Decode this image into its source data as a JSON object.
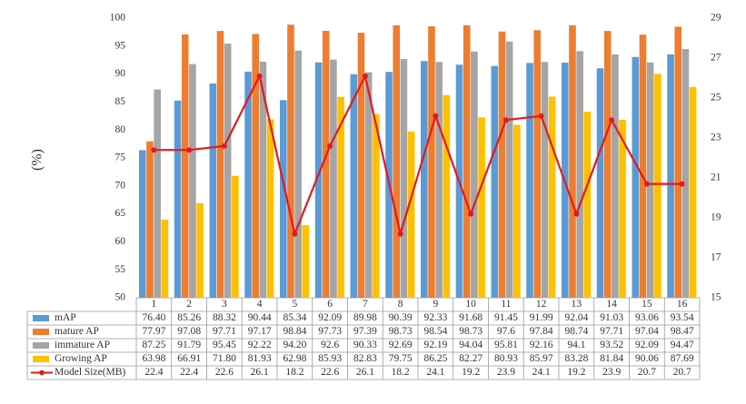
{
  "chart_data": {
    "type": "bar",
    "y_label": "(%)",
    "categories": [
      "1",
      "2",
      "3",
      "4",
      "5",
      "6",
      "7",
      "8",
      "9",
      "10",
      "11",
      "12",
      "13",
      "14",
      "15",
      "16"
    ],
    "ylim": [
      50,
      100
    ],
    "yticks": [
      50,
      55,
      60,
      65,
      70,
      75,
      80,
      85,
      90,
      95,
      100
    ],
    "y2lim": [
      15,
      29
    ],
    "y2ticks": [
      15,
      17,
      19,
      21,
      23,
      25,
      27,
      29
    ],
    "grid": false,
    "series": [
      {
        "name": "mAP",
        "color": "#5b9bd5",
        "type": "bar",
        "values": [
          76.4,
          85.26,
          88.32,
          90.44,
          85.34,
          92.09,
          89.98,
          90.39,
          92.33,
          91.68,
          91.45,
          91.99,
          92.04,
          91.03,
          93.06,
          93.54
        ],
        "value_labels": [
          "76.40",
          "85.26",
          "88.32",
          "90.44",
          "85.34",
          "92.09",
          "89.98",
          "90.39",
          "92.33",
          "91.68",
          "91.45",
          "91.99",
          "92.04",
          "91.03",
          "93.06",
          "93.54"
        ]
      },
      {
        "name": "mature AP",
        "color": "#ed7d31",
        "type": "bar",
        "values": [
          77.97,
          97.08,
          97.71,
          97.17,
          98.84,
          97.73,
          97.39,
          98.73,
          98.54,
          98.73,
          97.6,
          97.84,
          98.74,
          97.71,
          97.04,
          98.47
        ]
      },
      {
        "name": "immature AP",
        "color": "#a5a5a5",
        "type": "bar",
        "values": [
          87.25,
          91.79,
          95.45,
          92.22,
          94.2,
          92.6,
          90.33,
          92.69,
          92.19,
          94.04,
          95.81,
          92.16,
          94.1,
          93.52,
          92.09,
          94.47
        ],
        "value_labels": [
          "87.25",
          "91.79",
          "95.45",
          "92.22",
          "94.20",
          "92.6",
          "90.33",
          "92.69",
          "92.19",
          "94.04",
          "95.81",
          "92.16",
          "94.1",
          "93.52",
          "92.09",
          "94.47"
        ]
      },
      {
        "name": "Growing AP",
        "color": "#ffc000",
        "type": "bar",
        "values": [
          63.98,
          66.91,
          71.8,
          81.93,
          62.98,
          85.93,
          82.83,
          79.75,
          86.25,
          82.27,
          80.93,
          85.97,
          83.28,
          81.84,
          90.06,
          87.69
        ],
        "value_labels": [
          "63.98",
          "66.91",
          "71.80",
          "81.93",
          "62.98",
          "85.93",
          "82.83",
          "79.75",
          "86.25",
          "82.27",
          "80.93",
          "85.97",
          "83.28",
          "81.84",
          "90.06",
          "87.69"
        ]
      },
      {
        "name": "Model Size(MB)",
        "color": "#e31a1c",
        "type": "line",
        "axis": "y2",
        "values": [
          22.4,
          22.4,
          22.6,
          26.1,
          18.2,
          22.6,
          26.1,
          18.2,
          24.1,
          19.2,
          23.9,
          24.1,
          19.2,
          23.9,
          20.7,
          20.7
        ]
      }
    ]
  }
}
